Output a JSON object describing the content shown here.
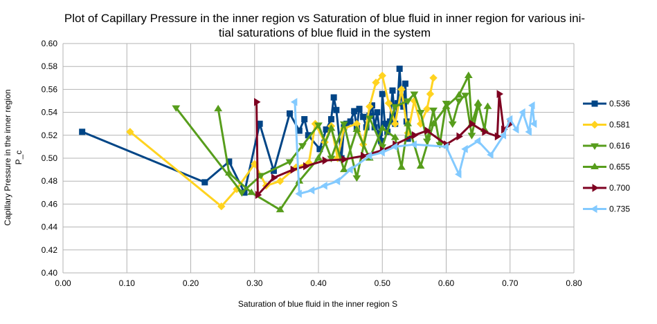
{
  "chart_data": {
    "type": "line",
    "title": [
      "Plot of Capillary Pressure in the inner region vs Saturation of blue fluid in inner region for various ini-",
      "tial saturations of blue fluid in the system"
    ],
    "xlabel": "Saturation of blue fluid in the inner region S",
    "ylabel": [
      "Capillary Pressure in the inner region",
      "P_c"
    ],
    "xlim": [
      0,
      0.8
    ],
    "ylim": [
      0.4,
      0.6
    ],
    "xticks": [
      "0.00",
      "0.10",
      "0.20",
      "0.30",
      "0.40",
      "0.50",
      "0.60",
      "0.70",
      "0.80"
    ],
    "yticks": [
      "0.40",
      "0.42",
      "0.44",
      "0.46",
      "0.48",
      "0.50",
      "0.52",
      "0.54",
      "0.56",
      "0.58",
      "0.60"
    ],
    "grid": true,
    "legend_position": "right",
    "series": [
      {
        "name": "0.536",
        "color": "#004586",
        "marker": "square",
        "points": [
          [
            0.03,
            0.523
          ],
          [
            0.222,
            0.479
          ],
          [
            0.26,
            0.497
          ],
          [
            0.284,
            0.47
          ],
          [
            0.308,
            0.53
          ],
          [
            0.33,
            0.489
          ],
          [
            0.355,
            0.539
          ],
          [
            0.37,
            0.524
          ],
          [
            0.378,
            0.534
          ],
          [
            0.384,
            0.52
          ],
          [
            0.402,
            0.508
          ],
          [
            0.412,
            0.525
          ],
          [
            0.42,
            0.534
          ],
          [
            0.424,
            0.553
          ],
          [
            0.428,
            0.542
          ],
          [
            0.436,
            0.5
          ],
          [
            0.44,
            0.527
          ],
          [
            0.444,
            0.53
          ],
          [
            0.45,
            0.532
          ],
          [
            0.456,
            0.541
          ],
          [
            0.46,
            0.527
          ],
          [
            0.464,
            0.543
          ],
          [
            0.47,
            0.536
          ],
          [
            0.475,
            0.527
          ],
          [
            0.48,
            0.537
          ],
          [
            0.484,
            0.546
          ],
          [
            0.488,
            0.527
          ],
          [
            0.492,
            0.54
          ],
          [
            0.496,
            0.522
          ],
          [
            0.498,
            0.515
          ],
          [
            0.5,
            0.556
          ],
          [
            0.504,
            0.53
          ],
          [
            0.508,
            0.523
          ],
          [
            0.512,
            0.532
          ],
          [
            0.516,
            0.559
          ],
          [
            0.52,
            0.53
          ],
          [
            0.524,
            0.548
          ],
          [
            0.527,
            0.578
          ],
          [
            0.53,
            0.553
          ],
          [
            0.533,
            0.545
          ],
          [
            0.536,
            0.565
          ],
          [
            0.538,
            0.532
          ],
          [
            0.54,
            0.517
          ]
        ]
      },
      {
        "name": "0.581",
        "color": "#ffd320",
        "marker": "diamond",
        "points": [
          [
            0.105,
            0.523
          ],
          [
            0.248,
            0.458
          ],
          [
            0.272,
            0.473
          ],
          [
            0.3,
            0.495
          ],
          [
            0.318,
            0.476
          ],
          [
            0.34,
            0.48
          ],
          [
            0.365,
            0.492
          ],
          [
            0.385,
            0.496
          ],
          [
            0.395,
            0.53
          ],
          [
            0.41,
            0.514
          ],
          [
            0.42,
            0.528
          ],
          [
            0.43,
            0.5
          ],
          [
            0.44,
            0.526
          ],
          [
            0.46,
            0.53
          ],
          [
            0.47,
            0.512
          ],
          [
            0.48,
            0.545
          ],
          [
            0.49,
            0.566
          ],
          [
            0.5,
            0.572
          ],
          [
            0.51,
            0.548
          ],
          [
            0.52,
            0.53
          ],
          [
            0.53,
            0.56
          ],
          [
            0.54,
            0.522
          ],
          [
            0.55,
            0.55
          ],
          [
            0.56,
            0.53
          ],
          [
            0.57,
            0.543
          ],
          [
            0.575,
            0.556
          ],
          [
            0.58,
            0.57
          ]
        ]
      },
      {
        "name": "0.616",
        "color": "#579d1c",
        "marker": "triangle-down",
        "points": [
          [
            0.177,
            0.544
          ],
          [
            0.28,
            0.47
          ],
          [
            0.31,
            0.485
          ],
          [
            0.355,
            0.497
          ],
          [
            0.375,
            0.511
          ],
          [
            0.4,
            0.529
          ],
          [
            0.42,
            0.5
          ],
          [
            0.44,
            0.53
          ],
          [
            0.46,
            0.483
          ],
          [
            0.48,
            0.535
          ],
          [
            0.5,
            0.51
          ],
          [
            0.52,
            0.545
          ],
          [
            0.54,
            0.55
          ],
          [
            0.55,
            0.556
          ],
          [
            0.56,
            0.54
          ],
          [
            0.57,
            0.515
          ],
          [
            0.58,
            0.542
          ],
          [
            0.59,
            0.512
          ],
          [
            0.6,
            0.548
          ],
          [
            0.61,
            0.53
          ],
          [
            0.62,
            0.55
          ],
          [
            0.63,
            0.555
          ],
          [
            0.64,
            0.52
          ],
          [
            0.65,
            0.545
          ]
        ]
      },
      {
        "name": "0.655",
        "color": "#579d1c",
        "marker": "triangle-up",
        "points": [
          [
            0.243,
            0.543
          ],
          [
            0.26,
            0.487
          ],
          [
            0.295,
            0.47
          ],
          [
            0.34,
            0.455
          ],
          [
            0.37,
            0.48
          ],
          [
            0.4,
            0.5
          ],
          [
            0.42,
            0.526
          ],
          [
            0.44,
            0.49
          ],
          [
            0.46,
            0.525
          ],
          [
            0.48,
            0.5
          ],
          [
            0.5,
            0.526
          ],
          [
            0.52,
            0.518
          ],
          [
            0.53,
            0.492
          ],
          [
            0.54,
            0.53
          ],
          [
            0.56,
            0.493
          ],
          [
            0.58,
            0.53
          ],
          [
            0.6,
            0.545
          ],
          [
            0.62,
            0.555
          ],
          [
            0.635,
            0.572
          ],
          [
            0.64,
            0.53
          ],
          [
            0.65,
            0.548
          ],
          [
            0.66,
            0.525
          ],
          [
            0.665,
            0.545
          ]
        ]
      },
      {
        "name": "0.700",
        "color": "#7e0021",
        "marker": "triangle-right",
        "points": [
          [
            0.303,
            0.549
          ],
          [
            0.305,
            0.468
          ],
          [
            0.33,
            0.483
          ],
          [
            0.36,
            0.49
          ],
          [
            0.38,
            0.493
          ],
          [
            0.41,
            0.498
          ],
          [
            0.44,
            0.499
          ],
          [
            0.47,
            0.502
          ],
          [
            0.5,
            0.507
          ],
          [
            0.52,
            0.512
          ],
          [
            0.55,
            0.52
          ],
          [
            0.57,
            0.524
          ],
          [
            0.6,
            0.512
          ],
          [
            0.62,
            0.519
          ],
          [
            0.64,
            0.53
          ],
          [
            0.66,
            0.523
          ],
          [
            0.68,
            0.519
          ],
          [
            0.683,
            0.556
          ],
          [
            0.69,
            0.525
          ],
          [
            0.7,
            0.53
          ]
        ]
      },
      {
        "name": "0.735",
        "color": "#83caff",
        "marker": "triangle-left",
        "points": [
          [
            0.363,
            0.549
          ],
          [
            0.37,
            0.469
          ],
          [
            0.39,
            0.472
          ],
          [
            0.41,
            0.476
          ],
          [
            0.43,
            0.48
          ],
          [
            0.45,
            0.49
          ],
          [
            0.48,
            0.502
          ],
          [
            0.5,
            0.505
          ],
          [
            0.52,
            0.51
          ],
          [
            0.55,
            0.512
          ],
          [
            0.6,
            0.51
          ],
          [
            0.62,
            0.486
          ],
          [
            0.63,
            0.508
          ],
          [
            0.65,
            0.515
          ],
          [
            0.67,
            0.503
          ],
          [
            0.69,
            0.52
          ],
          [
            0.7,
            0.534
          ],
          [
            0.71,
            0.525
          ],
          [
            0.72,
            0.54
          ],
          [
            0.73,
            0.523
          ],
          [
            0.735,
            0.546
          ],
          [
            0.738,
            0.53
          ]
        ]
      }
    ]
  }
}
